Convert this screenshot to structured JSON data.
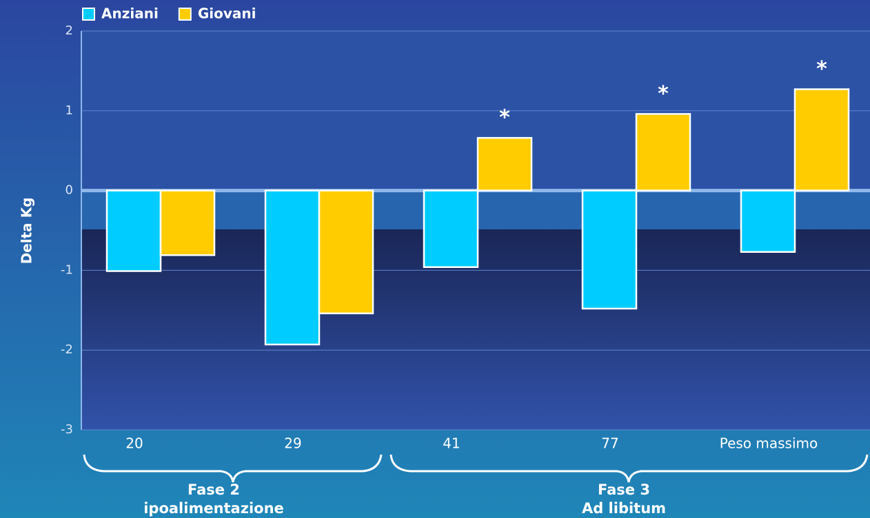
{
  "chart_data": {
    "type": "bar",
    "categories": [
      "20",
      "29",
      "41",
      "77",
      "Peso massimo"
    ],
    "series": [
      {
        "name": "Anziani",
        "color": "#00ccff",
        "values": [
          -1.01,
          -1.93,
          -0.96,
          -1.48,
          -0.77
        ]
      },
      {
        "name": "Giovani",
        "color": "#ffcc00",
        "values": [
          -0.81,
          -1.54,
          0.66,
          0.96,
          1.27
        ]
      }
    ],
    "y_label": "Delta Kg",
    "ylim": [
      -3,
      2
    ],
    "yticks": [
      -3,
      -2,
      -1,
      0,
      1,
      2
    ],
    "grid": true,
    "annotations": [
      {
        "label": "*",
        "x": "41",
        "series": "Giovani"
      },
      {
        "label": "*",
        "x": "77",
        "series": "Giovani"
      },
      {
        "label": "*",
        "x": "Peso massimo",
        "series": "Giovani"
      }
    ],
    "groups": [
      {
        "lines": [
          "Fase 2",
          "ipoalimentazione"
        ],
        "categories": [
          "20",
          "29"
        ]
      },
      {
        "lines": [
          "Fase 3",
          "Ad libitum"
        ],
        "categories": [
          "41",
          "77",
          "Peso massimo"
        ]
      }
    ]
  }
}
